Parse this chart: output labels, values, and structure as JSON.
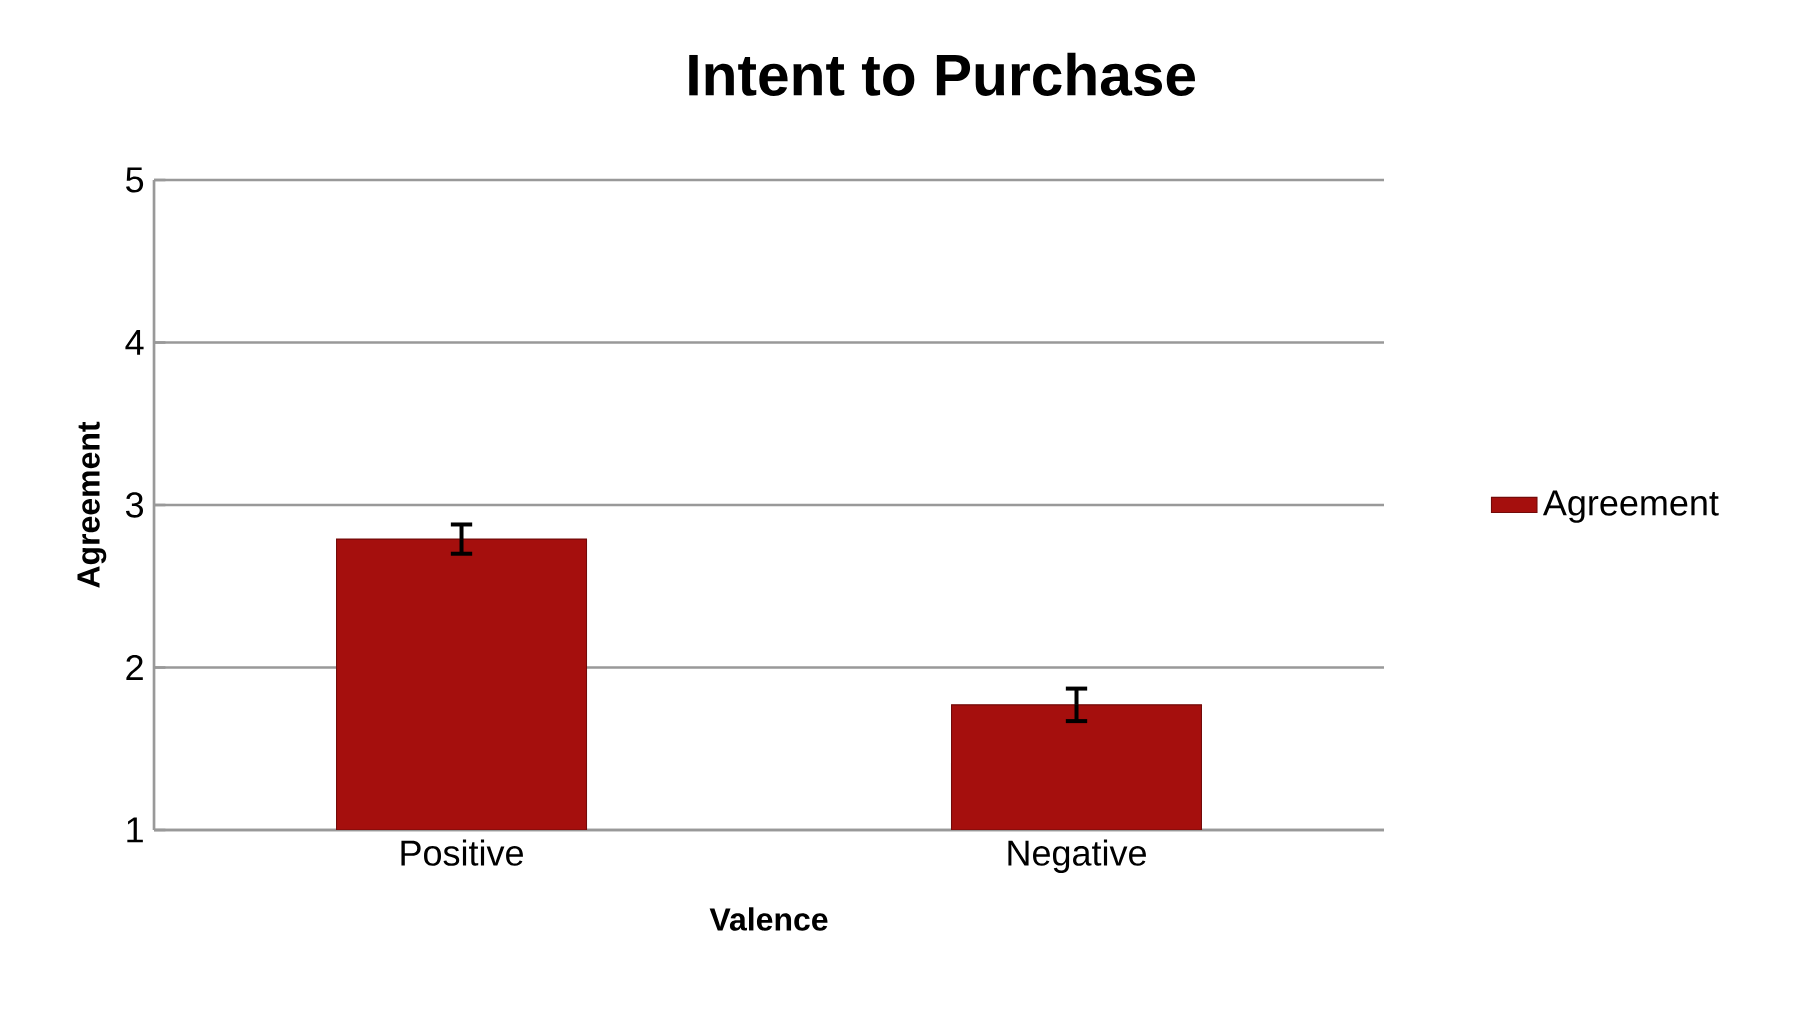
{
  "chart_data": {
    "type": "bar",
    "title": "Intent to Purchase",
    "xlabel": "Valence",
    "ylabel": "Agreement",
    "categories": [
      "Positive",
      "Negative"
    ],
    "series": [
      {
        "name": "Agreement",
        "color": "#a50f0d",
        "values": [
          2.79,
          1.77
        ],
        "errors": [
          0.09,
          0.1
        ]
      }
    ],
    "ylim": [
      1,
      5
    ],
    "yticks": [
      1,
      2,
      3,
      4,
      5
    ],
    "grid": "y",
    "legend": "right"
  }
}
